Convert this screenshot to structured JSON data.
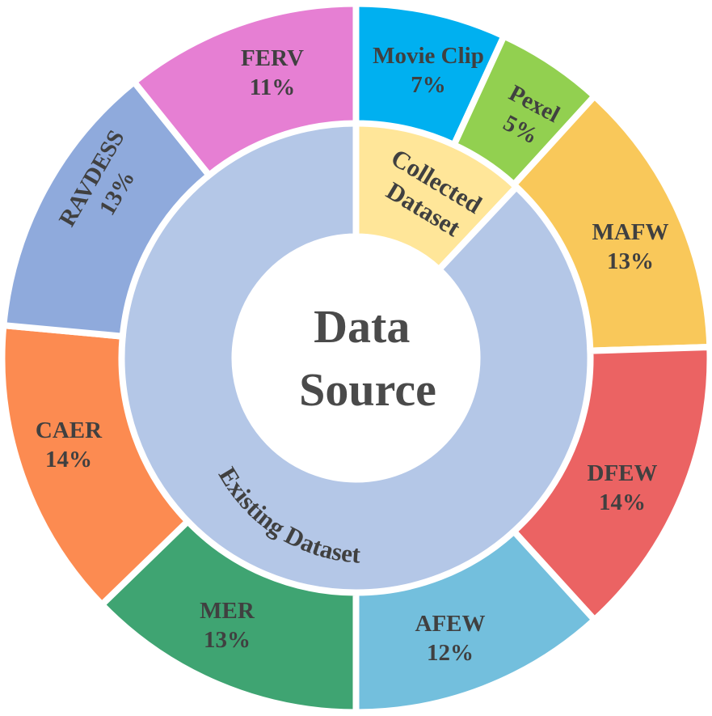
{
  "chart_data": {
    "type": "pie",
    "subtype": "nested-donut",
    "title": "Data Source",
    "title_lines": [
      "Data",
      "Source"
    ],
    "inner_ring": [
      {
        "name": "Collected Dataset",
        "lines": [
          "Collected",
          "Dataset"
        ],
        "share": 12,
        "color": "#ffe699"
      },
      {
        "name": "Existing Dataset",
        "lines": [
          "Existing Dataset"
        ],
        "share": 88,
        "color": "#b4c7e7"
      }
    ],
    "outer_ring": [
      {
        "name": "Movie Clip",
        "label": "7%",
        "value": 7,
        "color": "#00b0f0"
      },
      {
        "name": "Pexel",
        "label": "5%",
        "value": 5,
        "color": "#92d050"
      },
      {
        "name": "MAFW",
        "label": "13%",
        "value": 13,
        "color": "#f9c85a"
      },
      {
        "name": "DFEW",
        "label": "14%",
        "value": 14,
        "color": "#eb6363"
      },
      {
        "name": "AFEW",
        "label": "12%",
        "value": 12,
        "color": "#73bfdd"
      },
      {
        "name": "MER",
        "label": "13%",
        "value": 13,
        "color": "#3fa472"
      },
      {
        "name": "CAER",
        "label": "14%",
        "value": 14,
        "color": "#fc8b51"
      },
      {
        "name": "RAVDESS",
        "label": "13%",
        "value": 13,
        "color": "#8faadc"
      },
      {
        "name": "FERV",
        "label": "11%",
        "value": 11,
        "color": "#e67fd3"
      }
    ]
  }
}
